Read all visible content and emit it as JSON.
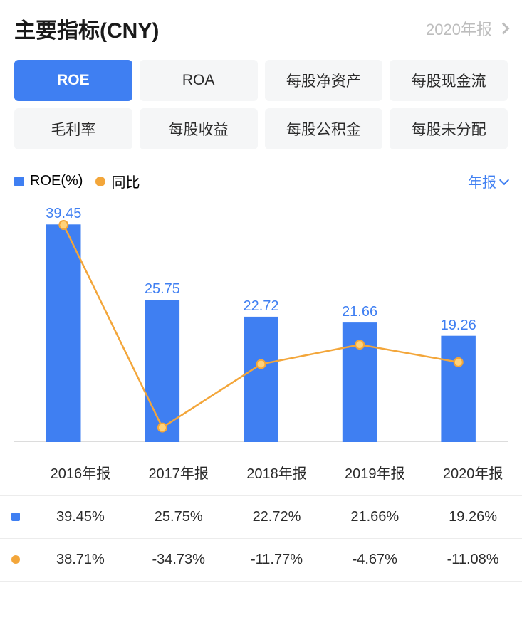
{
  "header": {
    "title": "主要指标(CNY)",
    "period_label": "2020年报"
  },
  "tabs": [
    {
      "label": "ROE",
      "active": true
    },
    {
      "label": "ROA",
      "active": false
    },
    {
      "label": "每股净资产",
      "active": false
    },
    {
      "label": "每股现金流",
      "active": false
    },
    {
      "label": "毛利率",
      "active": false
    },
    {
      "label": "每股收益",
      "active": false
    },
    {
      "label": "每股公积金",
      "active": false
    },
    {
      "label": "每股未分配",
      "active": false
    }
  ],
  "legend": {
    "bar_label": "ROE(%)",
    "bar_color": "#3f7ff2",
    "line_label": "同比",
    "line_color": "#f3a63a",
    "right_label": "年报"
  },
  "chart": {
    "type": "bar+line",
    "categories": [
      "2016年报",
      "2017年报",
      "2018年报",
      "2019年报",
      "2020年报"
    ],
    "bar_values": [
      39.45,
      25.75,
      22.72,
      21.66,
      19.26
    ],
    "bar_value_labels": [
      "39.45",
      "25.75",
      "22.72",
      "21.66",
      "19.26"
    ],
    "line_values": [
      38.71,
      -34.73,
      -11.77,
      -4.67,
      -11.08
    ],
    "bar_color": "#3f7ff2",
    "line_color": "#f3a63a",
    "line_point_border": "#f3a63a",
    "line_point_fill": "#ffd27a",
    "bar_ylim": [
      0,
      40
    ],
    "line_ylim": [
      -40,
      40
    ],
    "bar_width": 0.35,
    "label_fontsize": 20,
    "background_color": "#ffffff",
    "axis_color": "#dcdcdc"
  },
  "table": {
    "columns": [
      "2016年报",
      "2017年报",
      "2018年报",
      "2019年报",
      "2020年报"
    ],
    "rows": [
      {
        "marker": "square",
        "color": "#3f7ff2",
        "cells": [
          "39.45%",
          "25.75%",
          "22.72%",
          "21.66%",
          "19.26%"
        ],
        "styles": [
          "",
          "",
          "",
          "",
          ""
        ]
      },
      {
        "marker": "circle",
        "color": "#f3a63a",
        "cells": [
          "38.71%",
          "-34.73%",
          "-11.77%",
          "-4.67%",
          "-11.08%"
        ],
        "styles": [
          "pos",
          "neg",
          "neg",
          "neg",
          "neg"
        ]
      }
    ]
  }
}
